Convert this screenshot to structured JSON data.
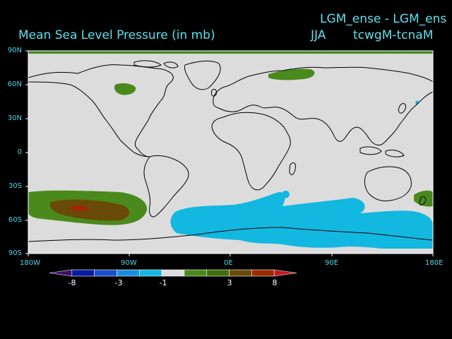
{
  "header": {
    "title": "Mean Sea Level Pressure (in mb)",
    "experiment": "LGM_ense - LGM_ens",
    "season": "JJA",
    "difference": "tcwgM-tcnaM"
  },
  "map": {
    "lat_labels": [
      "90N",
      "60N",
      "30N",
      "0",
      "30S",
      "60S",
      "90S"
    ],
    "lon_labels": [
      "180W",
      "90W",
      "0E",
      "90E",
      "180E"
    ],
    "land_outline_color": "#000000",
    "background_color": "#dcdcdc"
  },
  "colorbar": {
    "colors": [
      "#3a0f6e",
      "#0a1aa0",
      "#1a4ecc",
      "#1a8ee0",
      "#12b8e0",
      "#dcdcdc",
      "#4a8a1c",
      "#3e6e10",
      "#6a4a08",
      "#9a2a04",
      "#c01818"
    ],
    "labels": [
      "-8",
      "-3",
      "-1",
      "3",
      "8"
    ]
  }
}
